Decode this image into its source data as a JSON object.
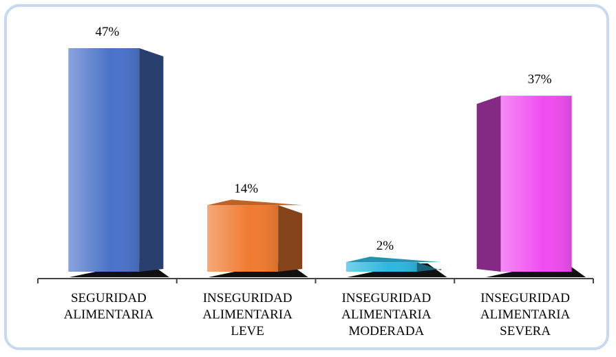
{
  "chart_data": {
    "type": "bar3d",
    "categories": [
      "SEGURIDAD ALIMENTARIA",
      "INSEGURIDAD ALIMENTARIA LEVE",
      "INSEGURIDAD ALIMENTARIA MODERADA",
      "INSEGURIDAD ALIMENTARIA SEVERA"
    ],
    "values": [
      47,
      14,
      2,
      37
    ],
    "value_labels": [
      "47%",
      "14%",
      "2%",
      "37%"
    ],
    "colors": [
      "#4a72c8",
      "#f07a30",
      "#2fb6e0",
      "#f04cf0"
    ]
  }
}
